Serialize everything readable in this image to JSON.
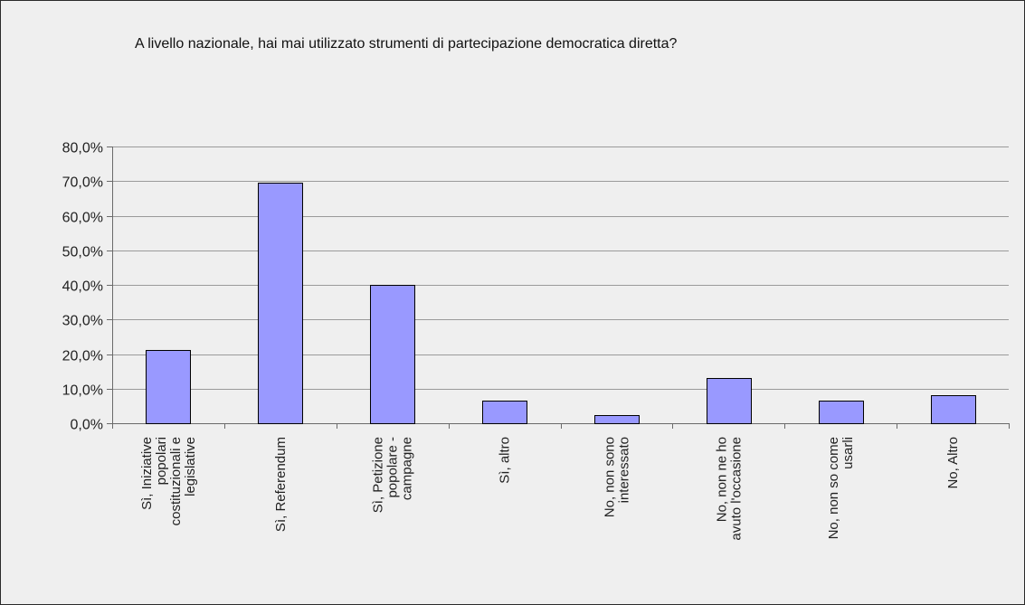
{
  "chart_data": {
    "type": "bar",
    "title": "A livello nazionale, hai mai utilizzato strumenti di partecipazione democratica diretta?",
    "categories": [
      [
        "Sì, Iniziative",
        "popolari",
        "costituzionali e",
        "legislative"
      ],
      [
        "Sì, Referendum"
      ],
      [
        "Sì, Petizione",
        "popolare -",
        "campagne"
      ],
      [
        "Sì, altro"
      ],
      [
        "No, non sono",
        "interessato"
      ],
      [
        "No, non ne ho",
        "avuto l'occasione"
      ],
      [
        "No, non so come",
        "usarli"
      ],
      [
        "No, Altro"
      ]
    ],
    "values": [
      21.3,
      69.6,
      40.0,
      6.6,
      2.4,
      13.1,
      6.6,
      8.2
    ],
    "ylim": [
      0,
      80
    ],
    "yticks": [
      "0,0%",
      "10,0%",
      "20,0%",
      "30,0%",
      "40,0%",
      "50,0%",
      "60,0%",
      "70,0%",
      "80,0%"
    ],
    "xlabel": "",
    "ylabel": "",
    "grid": true,
    "legend": "none",
    "colors": {
      "bar_fill": "#9999ff",
      "bar_stroke": "#000000",
      "gridline": "#9a9a9a",
      "plot_background": "#efefef",
      "axis": "#6a6a6a"
    }
  }
}
